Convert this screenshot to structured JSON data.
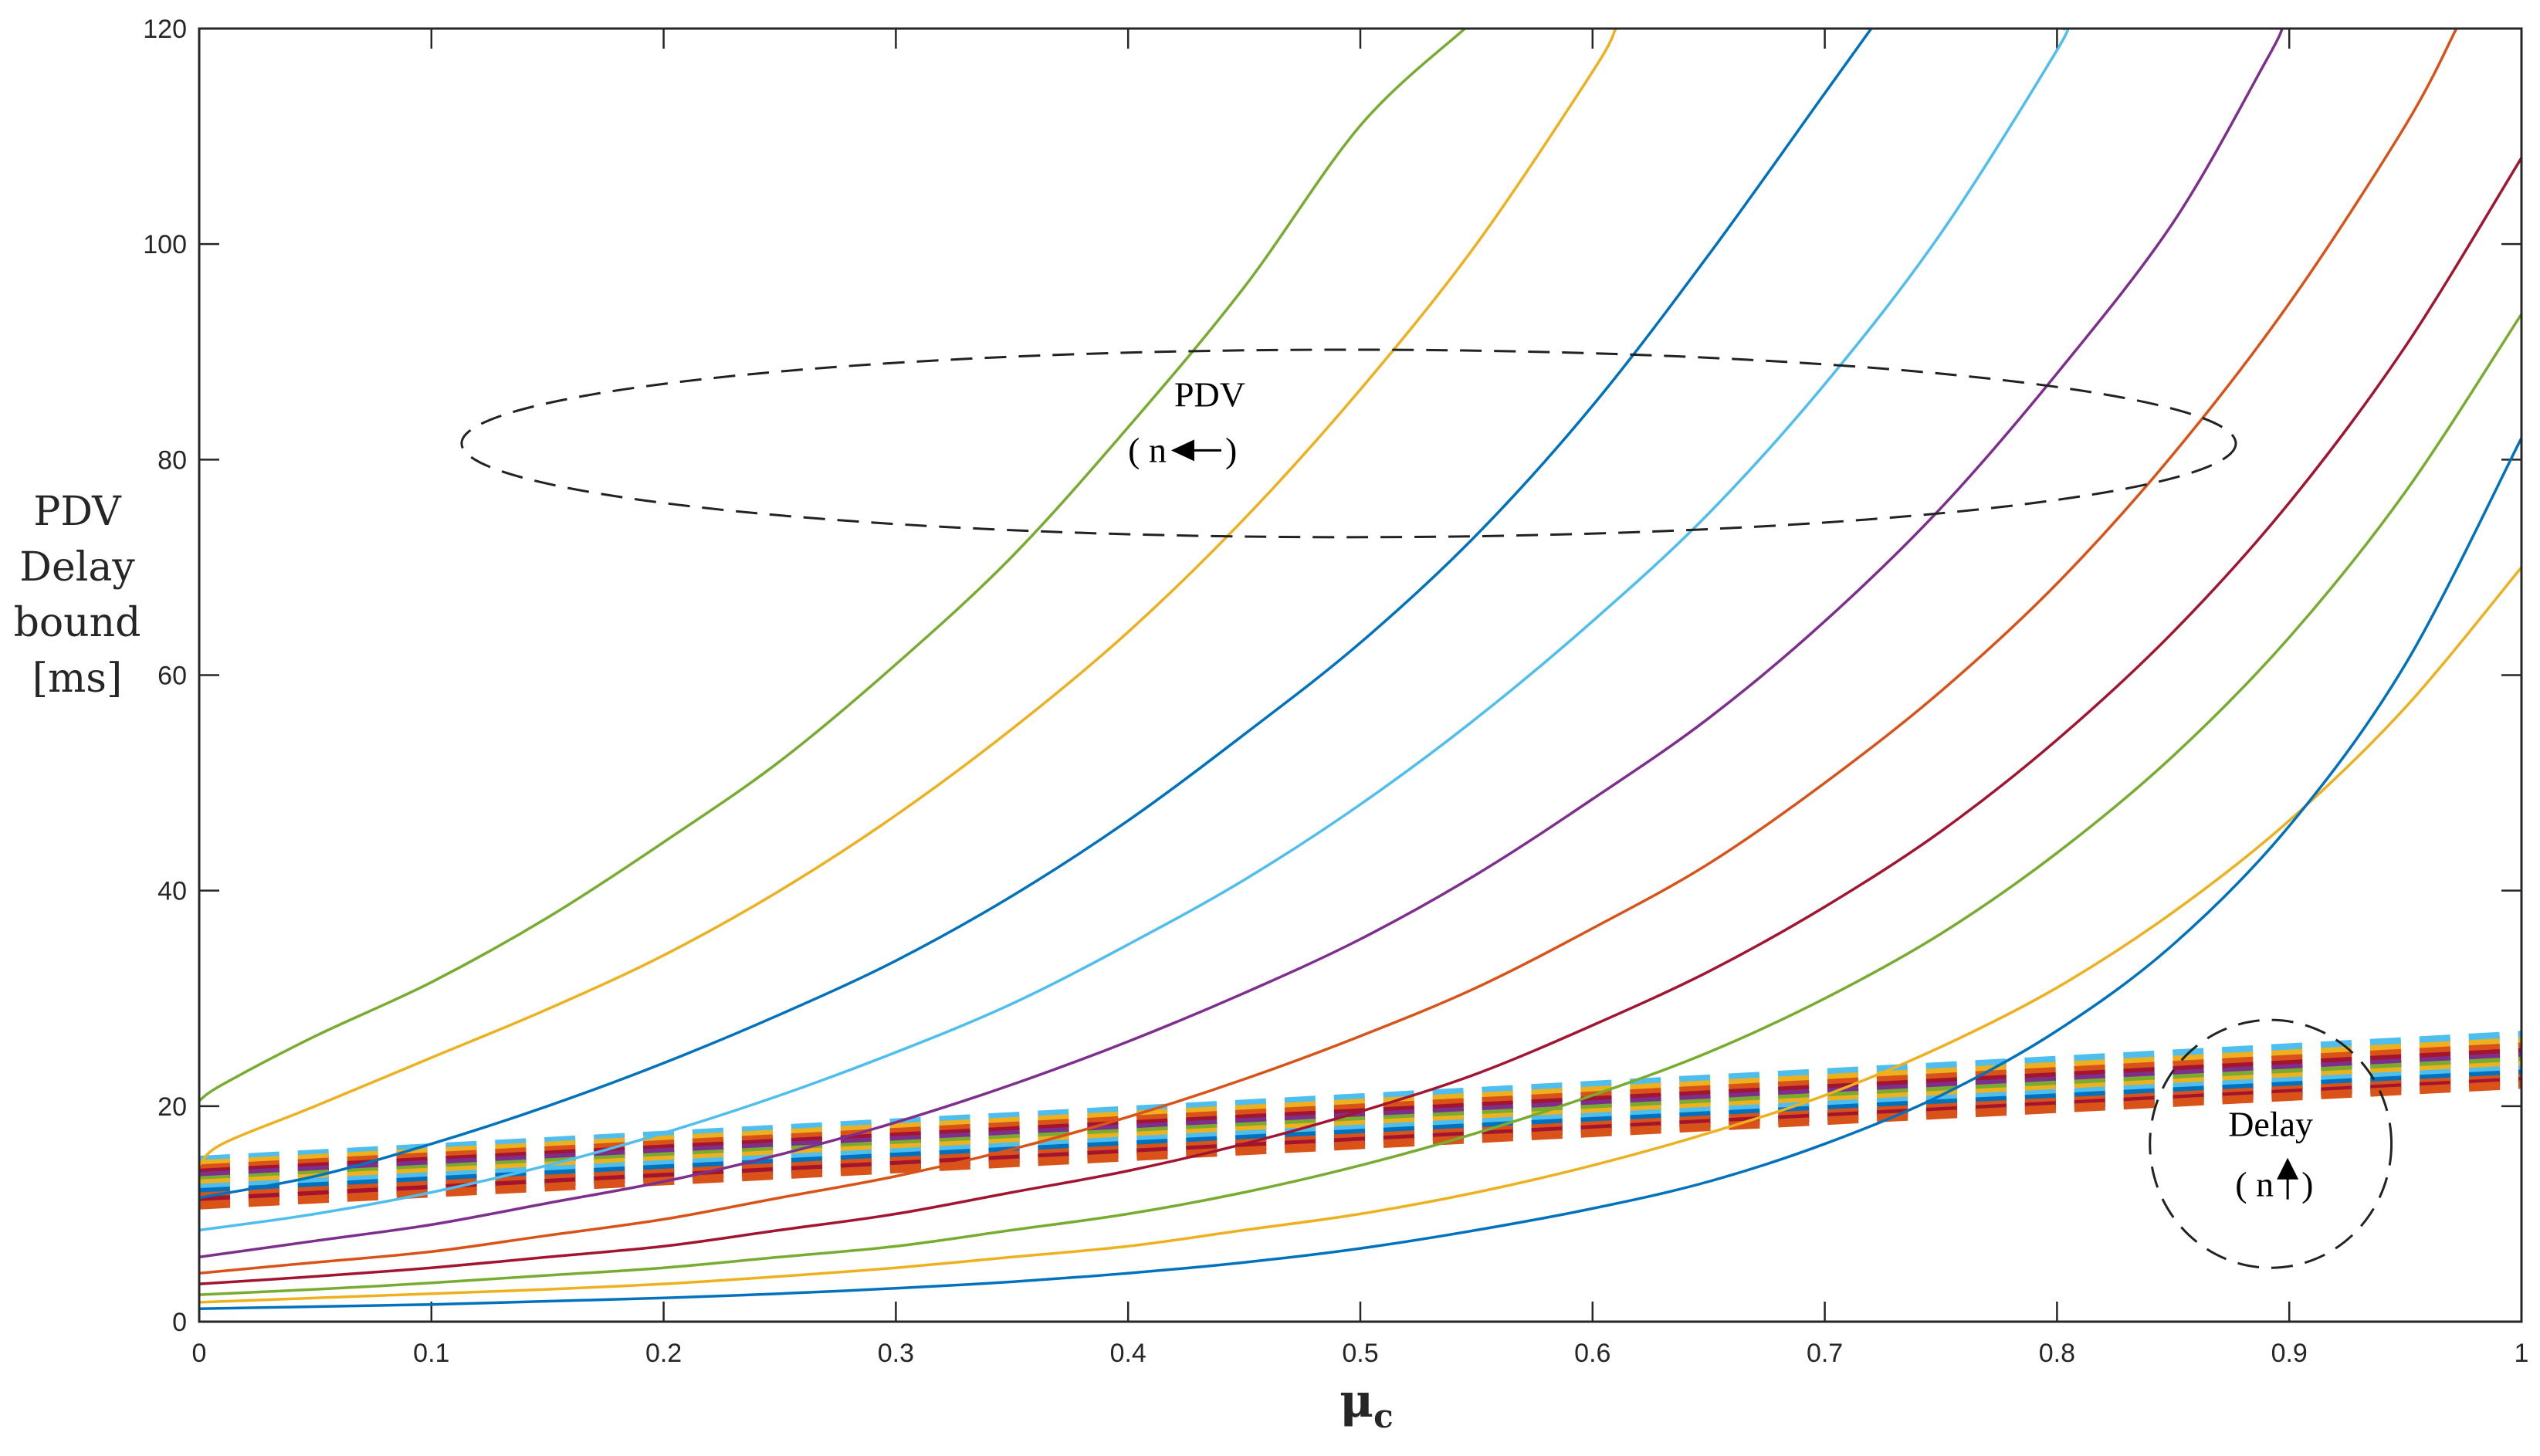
{
  "chart_data": {
    "type": "line",
    "ylabel_lines": [
      "PDV",
      "Delay",
      "bound",
      "[ms]"
    ],
    "xlabel": "μ",
    "xlabel_sub": "c",
    "xlim": [
      0,
      1
    ],
    "ylim": [
      0,
      120
    ],
    "xticks": [
      0,
      0.1,
      0.2,
      0.3,
      0.4,
      0.5,
      0.6,
      0.7,
      0.8,
      0.9,
      1
    ],
    "yticks": [
      0,
      20,
      40,
      60,
      80,
      100,
      120
    ],
    "xtick_labels": [
      "0",
      "0.1",
      "0.2",
      "0.3",
      "0.4",
      "0.5",
      "0.6",
      "0.7",
      "0.8",
      "0.9",
      "1"
    ],
    "ytick_labels": [
      "0",
      "20",
      "40",
      "60",
      "80",
      "100",
      "120"
    ],
    "grid": false,
    "annotations": [
      {
        "id": "pdv",
        "line1": "PDV",
        "line2_pre": "( n",
        "line2_post": ")",
        "arrow": "left",
        "center": [
          0.495,
          81.5
        ],
        "radius": [
          0.382,
          8.7
        ]
      },
      {
        "id": "delay",
        "line1": "Delay",
        "line2_pre": "( n",
        "line2_post": ")",
        "arrow": "up",
        "center": [
          0.892,
          16.5
        ],
        "radius": [
          0.052,
          11.5
        ]
      }
    ],
    "pdv_series": [
      {
        "color": "#77AC30",
        "points": [
          [
            0,
            20.5
          ],
          [
            0.01,
            22
          ],
          [
            0.05,
            26.5
          ],
          [
            0.1,
            31.5
          ],
          [
            0.15,
            37.5
          ],
          [
            0.2,
            44.5
          ],
          [
            0.25,
            52
          ],
          [
            0.3,
            61
          ],
          [
            0.35,
            71
          ],
          [
            0.4,
            83
          ],
          [
            0.45,
            96
          ],
          [
            0.5,
            111
          ],
          [
            0.545,
            120
          ]
        ]
      },
      {
        "color": "#EDB120",
        "points": [
          [
            0,
            14.5
          ],
          [
            0.01,
            16.5
          ],
          [
            0.05,
            20
          ],
          [
            0.1,
            24.5
          ],
          [
            0.15,
            29
          ],
          [
            0.2,
            34
          ],
          [
            0.25,
            40
          ],
          [
            0.3,
            47
          ],
          [
            0.35,
            55
          ],
          [
            0.4,
            64
          ],
          [
            0.45,
            74.5
          ],
          [
            0.5,
            86.5
          ],
          [
            0.55,
            100
          ],
          [
            0.6,
            116
          ],
          [
            0.61,
            120
          ]
        ]
      },
      {
        "color": "#0072BD",
        "points": [
          [
            0,
            11.5
          ],
          [
            0.05,
            13.5
          ],
          [
            0.1,
            16.5
          ],
          [
            0.15,
            20
          ],
          [
            0.2,
            24
          ],
          [
            0.25,
            28.5
          ],
          [
            0.3,
            33.5
          ],
          [
            0.35,
            39.5
          ],
          [
            0.4,
            46.5
          ],
          [
            0.45,
            54.5
          ],
          [
            0.5,
            63
          ],
          [
            0.55,
            73
          ],
          [
            0.6,
            85
          ],
          [
            0.65,
            99
          ],
          [
            0.7,
            114
          ],
          [
            0.72,
            120
          ]
        ]
      },
      {
        "color": "#4DBEEE",
        "points": [
          [
            0,
            8.5
          ],
          [
            0.05,
            10
          ],
          [
            0.1,
            12
          ],
          [
            0.15,
            14.5
          ],
          [
            0.2,
            17.5
          ],
          [
            0.25,
            21
          ],
          [
            0.3,
            25
          ],
          [
            0.35,
            29.5
          ],
          [
            0.4,
            35
          ],
          [
            0.45,
            41
          ],
          [
            0.5,
            48
          ],
          [
            0.55,
            56
          ],
          [
            0.6,
            65
          ],
          [
            0.65,
            75
          ],
          [
            0.7,
            87
          ],
          [
            0.75,
            101
          ],
          [
            0.8,
            118
          ],
          [
            0.803,
            120
          ]
        ]
      },
      {
        "color": "#7E2F8E",
        "points": [
          [
            0,
            6
          ],
          [
            0.05,
            7.5
          ],
          [
            0.1,
            9
          ],
          [
            0.15,
            11
          ],
          [
            0.2,
            13
          ],
          [
            0.25,
            15.5
          ],
          [
            0.3,
            18.5
          ],
          [
            0.35,
            22
          ],
          [
            0.4,
            26
          ],
          [
            0.45,
            30.5
          ],
          [
            0.5,
            35.5
          ],
          [
            0.55,
            41.5
          ],
          [
            0.6,
            48.5
          ],
          [
            0.65,
            56
          ],
          [
            0.7,
            65
          ],
          [
            0.75,
            75.5
          ],
          [
            0.8,
            88
          ],
          [
            0.85,
            102
          ],
          [
            0.89,
            117
          ],
          [
            0.897,
            120
          ]
        ]
      },
      {
        "color": "#D95319",
        "points": [
          [
            0,
            4.5
          ],
          [
            0.05,
            5.5
          ],
          [
            0.1,
            6.5
          ],
          [
            0.15,
            8
          ],
          [
            0.2,
            9.5
          ],
          [
            0.25,
            11.5
          ],
          [
            0.3,
            13.5
          ],
          [
            0.35,
            16
          ],
          [
            0.4,
            19
          ],
          [
            0.45,
            22.5
          ],
          [
            0.5,
            26.5
          ],
          [
            0.55,
            31
          ],
          [
            0.6,
            36.5
          ],
          [
            0.65,
            42.5
          ],
          [
            0.7,
            50
          ],
          [
            0.75,
            58.5
          ],
          [
            0.8,
            68.5
          ],
          [
            0.85,
            80.5
          ],
          [
            0.9,
            94.5
          ],
          [
            0.95,
            111
          ],
          [
            0.972,
            120
          ]
        ]
      },
      {
        "color": "#A2142F",
        "points": [
          [
            0,
            3.5
          ],
          [
            0.05,
            4.2
          ],
          [
            0.1,
            5
          ],
          [
            0.15,
            6
          ],
          [
            0.2,
            7
          ],
          [
            0.25,
            8.5
          ],
          [
            0.3,
            10
          ],
          [
            0.35,
            12
          ],
          [
            0.4,
            14
          ],
          [
            0.45,
            16.5
          ],
          [
            0.5,
            19.5
          ],
          [
            0.55,
            23
          ],
          [
            0.6,
            27.5
          ],
          [
            0.65,
            32.5
          ],
          [
            0.7,
            38.5
          ],
          [
            0.75,
            45.5
          ],
          [
            0.8,
            54
          ],
          [
            0.85,
            64
          ],
          [
            0.9,
            76
          ],
          [
            0.95,
            90.5
          ],
          [
            1,
            108
          ]
        ]
      },
      {
        "color": "#77AC30",
        "points": [
          [
            0,
            2.5
          ],
          [
            0.05,
            3
          ],
          [
            0.1,
            3.6
          ],
          [
            0.15,
            4.3
          ],
          [
            0.2,
            5
          ],
          [
            0.25,
            6
          ],
          [
            0.3,
            7
          ],
          [
            0.35,
            8.5
          ],
          [
            0.4,
            10
          ],
          [
            0.45,
            12
          ],
          [
            0.5,
            14.5
          ],
          [
            0.55,
            17.5
          ],
          [
            0.6,
            21
          ],
          [
            0.65,
            25
          ],
          [
            0.7,
            30
          ],
          [
            0.75,
            36
          ],
          [
            0.8,
            43.5
          ],
          [
            0.85,
            52.5
          ],
          [
            0.9,
            63.5
          ],
          [
            0.95,
            77
          ],
          [
            1,
            93.5
          ]
        ]
      },
      {
        "color": "#EDB120",
        "points": [
          [
            0,
            1.8
          ],
          [
            0.05,
            2.2
          ],
          [
            0.1,
            2.6
          ],
          [
            0.15,
            3
          ],
          [
            0.2,
            3.5
          ],
          [
            0.25,
            4.2
          ],
          [
            0.3,
            5
          ],
          [
            0.35,
            6
          ],
          [
            0.4,
            7
          ],
          [
            0.45,
            8.5
          ],
          [
            0.5,
            10
          ],
          [
            0.55,
            12
          ],
          [
            0.6,
            14.5
          ],
          [
            0.65,
            17.5
          ],
          [
            0.7,
            21
          ],
          [
            0.75,
            25.5
          ],
          [
            0.8,
            31
          ],
          [
            0.85,
            38
          ],
          [
            0.9,
            46.5
          ],
          [
            0.95,
            57
          ],
          [
            1,
            70
          ]
        ]
      },
      {
        "color": "#0072BD",
        "points": [
          [
            0,
            1.2
          ],
          [
            0.05,
            1.4
          ],
          [
            0.1,
            1.6
          ],
          [
            0.15,
            1.9
          ],
          [
            0.2,
            2.2
          ],
          [
            0.25,
            2.6
          ],
          [
            0.3,
            3.1
          ],
          [
            0.35,
            3.7
          ],
          [
            0.4,
            4.5
          ],
          [
            0.45,
            5.5
          ],
          [
            0.5,
            6.8
          ],
          [
            0.55,
            8.5
          ],
          [
            0.6,
            10.5
          ],
          [
            0.65,
            13
          ],
          [
            0.7,
            16.5
          ],
          [
            0.75,
            21
          ],
          [
            0.8,
            27
          ],
          [
            0.85,
            35
          ],
          [
            0.9,
            46
          ],
          [
            0.95,
            61
          ],
          [
            1,
            82
          ]
        ]
      }
    ],
    "delay_series": [
      {
        "color": "#4DBEEE",
        "y0": 15.0,
        "y1": 26.6
      },
      {
        "color": "#EDB120",
        "y0": 14.6,
        "y1": 26.0
      },
      {
        "color": "#D95319",
        "y0": 14.2,
        "y1": 25.5
      },
      {
        "color": "#A2142F",
        "y0": 13.8,
        "y1": 25.0
      },
      {
        "color": "#7E2F8E",
        "y0": 13.5,
        "y1": 24.6
      },
      {
        "color": "#77AC30",
        "y0": 13.1,
        "y1": 24.2
      },
      {
        "color": "#EDB120",
        "y0": 12.8,
        "y1": 23.8
      },
      {
        "color": "#4DBEEE",
        "y0": 12.4,
        "y1": 23.4
      },
      {
        "color": "#0072BD",
        "y0": 12.0,
        "y1": 23.0
      },
      {
        "color": "#D95319",
        "y0": 11.6,
        "y1": 22.6
      },
      {
        "color": "#A2142F",
        "y0": 11.2,
        "y1": 22.3
      },
      {
        "color": "#D95319",
        "y0": 10.8,
        "y1": 22.0
      }
    ]
  }
}
